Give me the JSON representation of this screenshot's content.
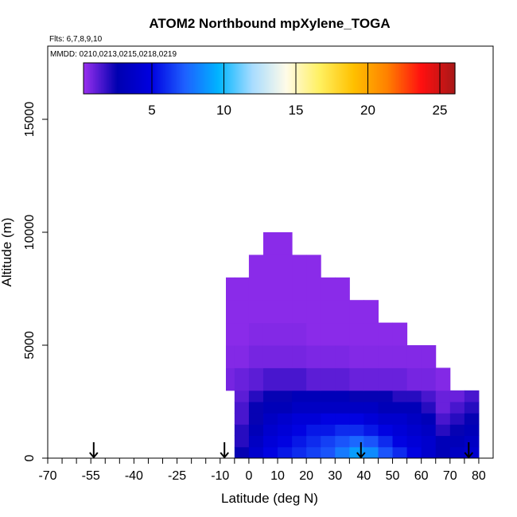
{
  "chart_data": {
    "type": "curtain",
    "title": "ATOM2 Northbound mpXylene_TOGA",
    "subtitle": "Flts: 6,7,8,9,10",
    "annotation": "MMDD: 0210,0213,0215,0218,0219",
    "xlabel": "Latitude (deg N)",
    "ylabel": "Altitude (m)",
    "xlim": [
      -70,
      85
    ],
    "ylim": [
      0,
      18240
    ],
    "xticks": [
      -70,
      -55,
      -40,
      -25,
      -10,
      0,
      10,
      20,
      30,
      40,
      50,
      60,
      70,
      80
    ],
    "xminorticks": [
      -70,
      -65,
      -60,
      -55,
      -50,
      -45,
      -40,
      -35,
      -30,
      -25,
      -20,
      -15,
      -10,
      -5,
      0,
      5,
      10,
      15,
      20,
      25,
      30,
      35,
      40,
      45,
      50,
      55,
      60,
      65,
      70,
      75,
      80
    ],
    "yticks": [
      0,
      5000,
      10000,
      15000
    ],
    "clim": [
      0.25,
      26.05
    ],
    "cticks": [
      5,
      10,
      15,
      20,
      25
    ],
    "colormap": [
      "#9a30f0",
      "#0000b0",
      "#0000e0",
      "#1e60ff",
      "#00b4ff",
      "#a8dcff",
      "#fffbe8",
      "#fff060",
      "#ffc000",
      "#ff8000",
      "#ff1010",
      "#a81818"
    ],
    "arrows": [
      -54,
      -8.5,
      39,
      76.5
    ],
    "lat_bins": [
      -8,
      -5,
      0,
      5,
      10,
      15,
      20,
      25,
      30,
      35,
      40,
      45,
      50,
      55,
      60,
      65,
      70,
      75,
      80
    ],
    "alt_bins": [
      0,
      500,
      1000,
      1500,
      2000,
      2500,
      3000,
      4000,
      5000,
      6000,
      7000,
      8000,
      9000,
      10000
    ],
    "values": [
      [
        null,
        2.5,
        4,
        5,
        5.5,
        6,
        6.5,
        7,
        8,
        9,
        8.5,
        7,
        6,
        5,
        4,
        3,
        3.5,
        4
      ],
      [
        null,
        2,
        3.5,
        4.5,
        5,
        5.5,
        6,
        6.5,
        7,
        7.5,
        7,
        6,
        5,
        4.5,
        4,
        3,
        3,
        3.5
      ],
      [
        null,
        2,
        3,
        4,
        4.5,
        5,
        5.5,
        5.5,
        6,
        6,
        5.5,
        5,
        4.5,
        4,
        3.5,
        2,
        2.5,
        3
      ],
      [
        null,
        1.5,
        2.5,
        3.5,
        4,
        4.5,
        4.5,
        5,
        5,
        5,
        4.5,
        4,
        4,
        3.5,
        3,
        1.5,
        2,
        2.5
      ],
      [
        null,
        1.5,
        2.5,
        3,
        3,
        3.5,
        3.5,
        3.5,
        3.5,
        3.5,
        3.5,
        3,
        3,
        3,
        2,
        1,
        1.5,
        2
      ],
      [
        null,
        1.2,
        2,
        2.5,
        2.5,
        3,
        3,
        3,
        3,
        2.5,
        2.5,
        2.5,
        2,
        2,
        1.5,
        1,
        1,
        1.5
      ],
      [
        0.8,
        1,
        1.2,
        1.5,
        1.5,
        1.5,
        1.2,
        1.2,
        1.2,
        1,
        1,
        1,
        1,
        0.8,
        0.8,
        0.6,
        null,
        null
      ],
      [
        0.6,
        0.6,
        0.8,
        0.8,
        0.8,
        0.8,
        0.7,
        0.7,
        0.7,
        0.6,
        0.6,
        0.6,
        0.6,
        0.6,
        0.6,
        null,
        null,
        null
      ],
      [
        0.5,
        0.5,
        0.6,
        0.6,
        0.6,
        0.6,
        0.5,
        0.5,
        0.5,
        0.5,
        0.5,
        0.5,
        0.5,
        null,
        null,
        null,
        null,
        null
      ],
      [
        0.5,
        0.5,
        0.5,
        0.5,
        0.5,
        0.5,
        0.5,
        0.5,
        0.5,
        0.5,
        0.5,
        null,
        null,
        null,
        null,
        null,
        null,
        null
      ],
      [
        0.5,
        0.5,
        0.5,
        0.5,
        0.5,
        0.5,
        0.5,
        0.5,
        0.5,
        null,
        null,
        null,
        null,
        null,
        null,
        null,
        null,
        null
      ],
      [
        null,
        null,
        0.5,
        0.5,
        0.5,
        0.5,
        0.5,
        null,
        null,
        null,
        null,
        null,
        null,
        null,
        null,
        null,
        null,
        null
      ],
      [
        null,
        null,
        null,
        0.5,
        0.5,
        null,
        null,
        null,
        null,
        null,
        null,
        null,
        null,
        null,
        null,
        null,
        null,
        null
      ]
    ]
  }
}
